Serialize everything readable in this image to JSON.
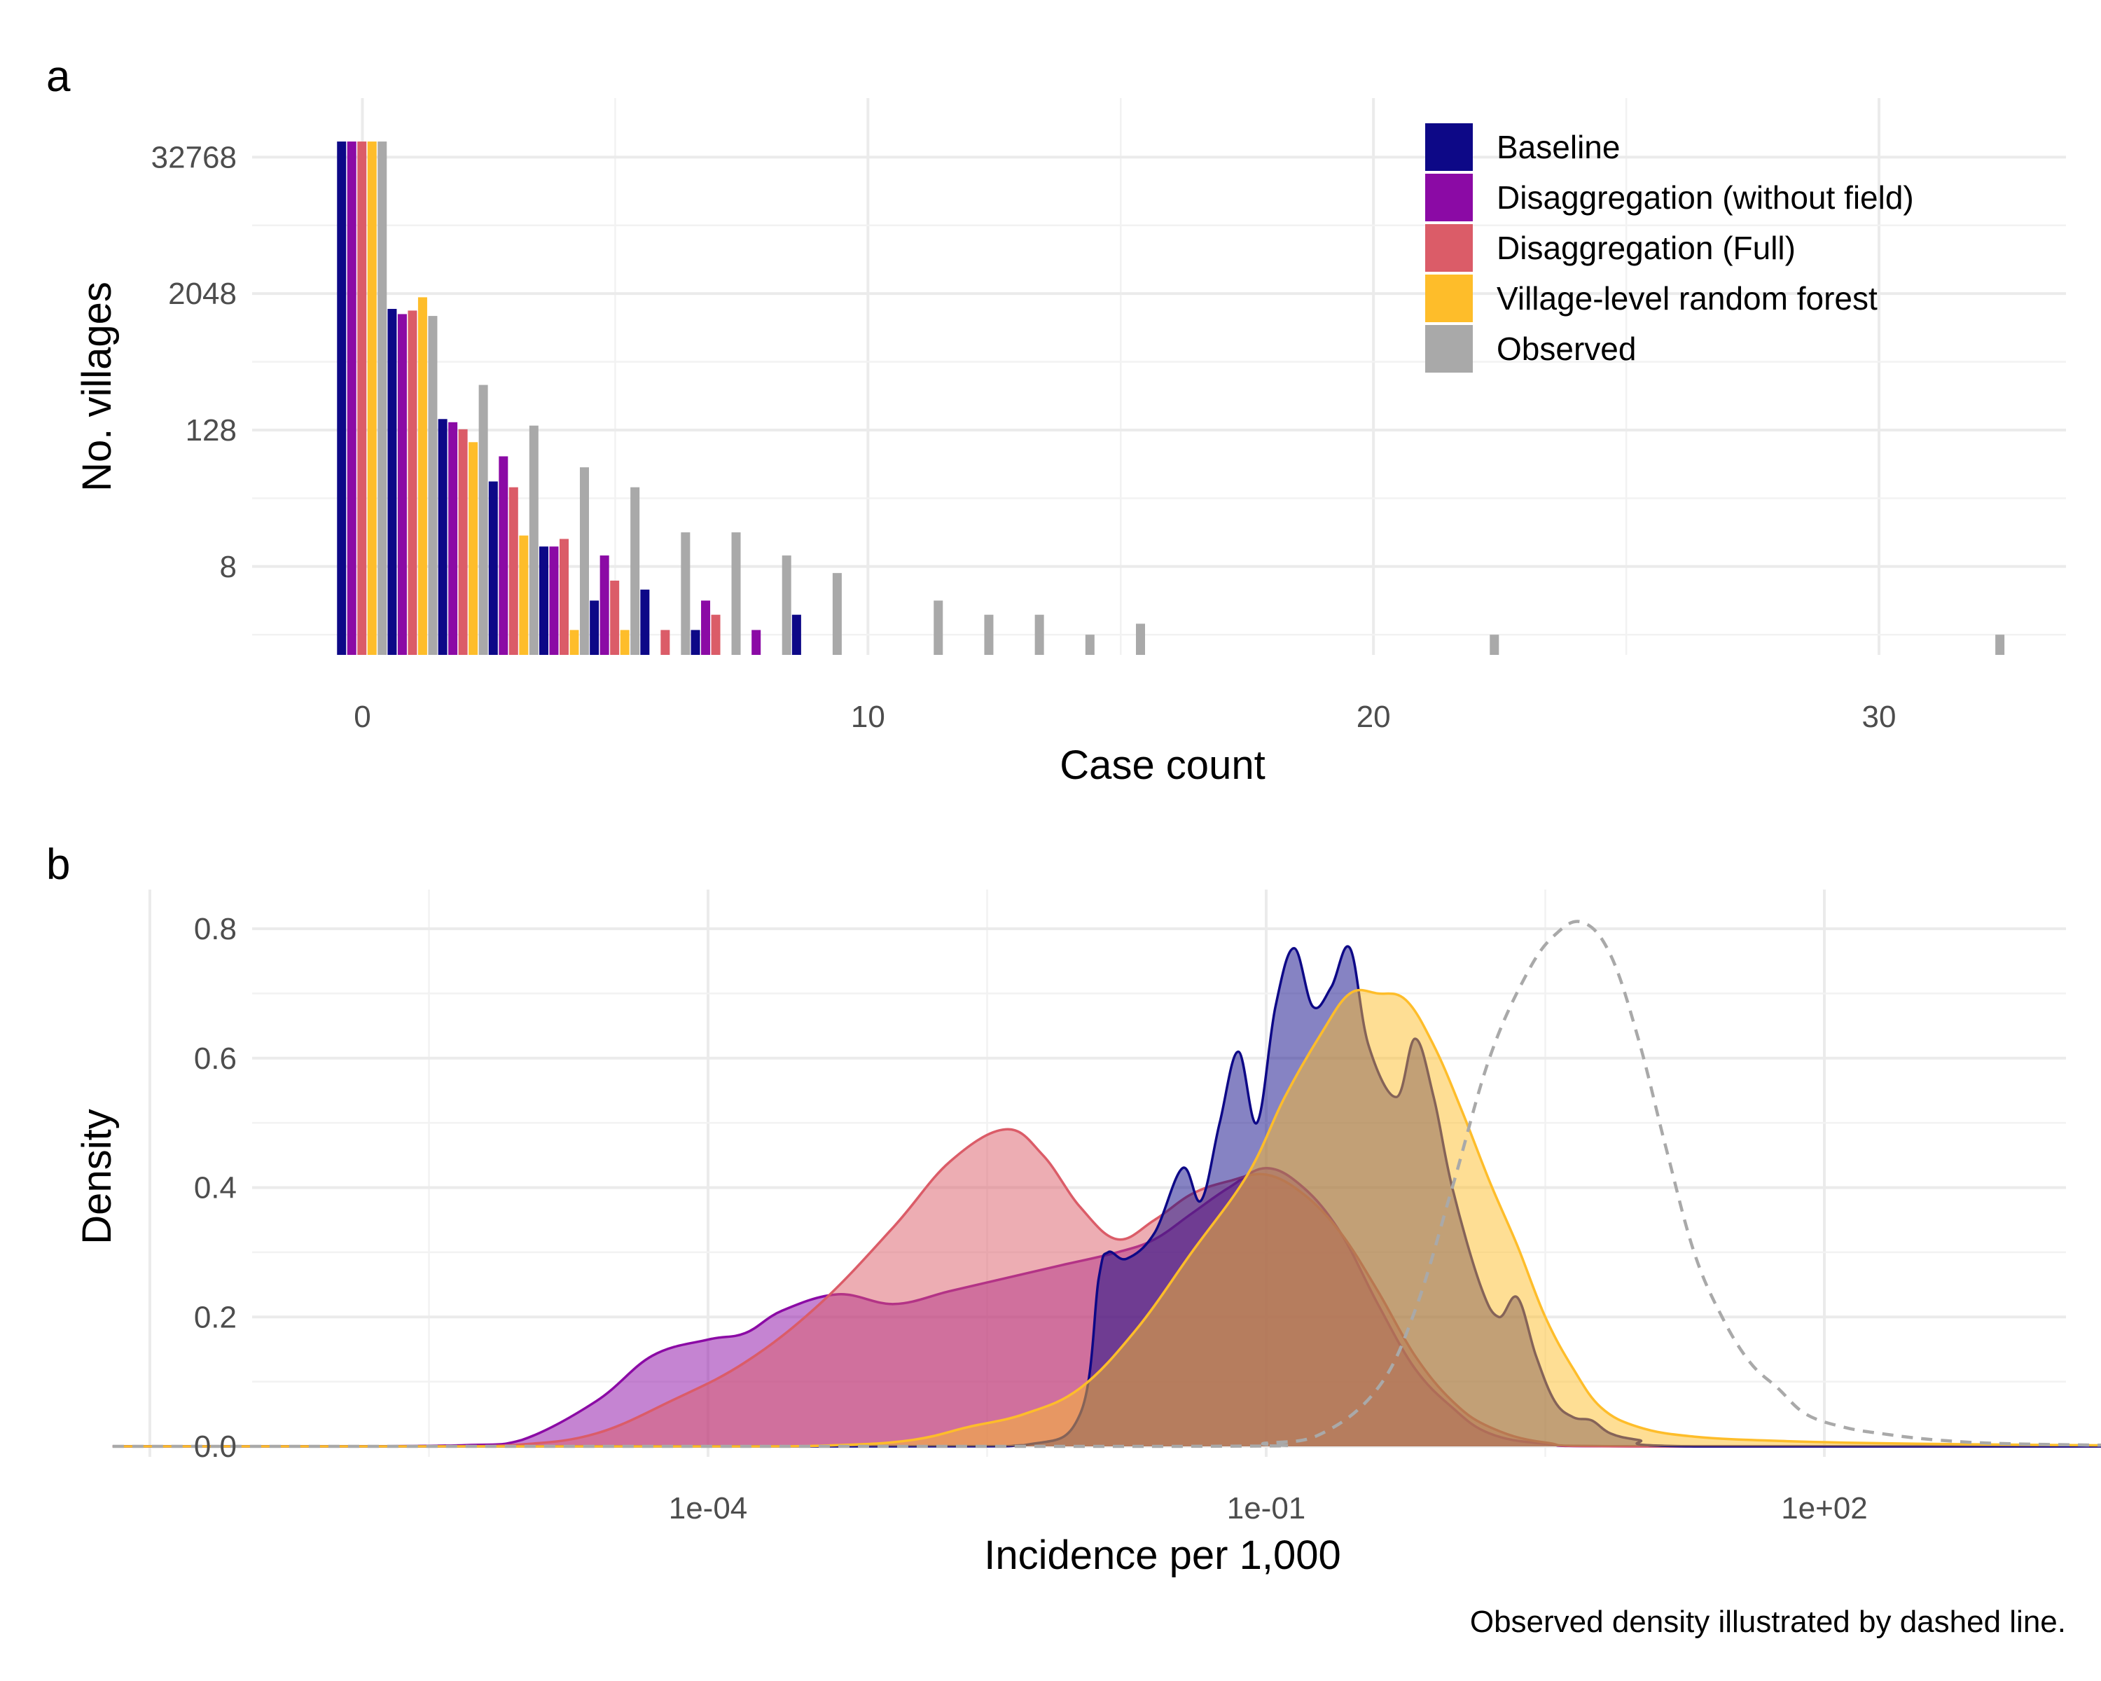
{
  "colors": {
    "baseline": "#0d0887",
    "disagg_without_field": "#8b0aa5",
    "disagg_full": "#db5c68",
    "village_rf": "#febd2a",
    "observed": "#a9a9a9"
  },
  "chart_data": [
    {
      "panel": "a",
      "type": "bar",
      "xlabel": "Case count",
      "ylabel": "No. villages",
      "y_scale": "log2",
      "xlim": [
        -0.5,
        32.5
      ],
      "xticks": [
        "0",
        "10",
        "20",
        "30"
      ],
      "yticks": [
        "8",
        "128",
        "2048",
        "32768"
      ],
      "legend_position": "top-right",
      "series": [
        {
          "name": "Baseline",
          "color_key": "baseline",
          "points": [
            [
              0,
              45000
            ],
            [
              1,
              1500
            ],
            [
              2,
              160
            ],
            [
              3,
              45
            ],
            [
              4,
              12
            ],
            [
              5,
              4
            ],
            [
              6,
              5
            ],
            [
              7,
              2.2
            ],
            [
              9,
              3
            ]
          ]
        },
        {
          "name": "Disaggregation (without field)",
          "color_key": "disagg_without_field",
          "points": [
            [
              0,
              45000
            ],
            [
              1,
              1350
            ],
            [
              2,
              150
            ],
            [
              3,
              75
            ],
            [
              4,
              12
            ],
            [
              5,
              10
            ],
            [
              6,
              0
            ],
            [
              7,
              4
            ],
            [
              8,
              2.2
            ]
          ]
        },
        {
          "name": "Disaggregation (Full)",
          "color_key": "disagg_full",
          "points": [
            [
              0,
              45000
            ],
            [
              1,
              1450
            ],
            [
              2,
              130
            ],
            [
              3,
              40
            ],
            [
              4,
              14
            ],
            [
              5,
              6
            ],
            [
              6,
              2.2
            ],
            [
              7,
              3
            ]
          ]
        },
        {
          "name": "Village-level random forest",
          "color_key": "village_rf",
          "points": [
            [
              0,
              45000
            ],
            [
              1,
              1900
            ],
            [
              2,
              100
            ],
            [
              3,
              15
            ],
            [
              4,
              2.2
            ],
            [
              5,
              2.2
            ]
          ]
        },
        {
          "name": "Observed",
          "color_key": "observed",
          "points": [
            [
              0,
              45000
            ],
            [
              1,
              1300
            ],
            [
              2,
              320
            ],
            [
              3,
              140
            ],
            [
              4,
              60
            ],
            [
              5,
              40
            ],
            [
              6,
              16
            ],
            [
              7,
              16
            ],
            [
              8,
              10
            ],
            [
              9,
              7
            ],
            [
              11,
              4
            ],
            [
              12,
              3
            ],
            [
              13,
              3
            ],
            [
              14,
              2
            ],
            [
              15,
              2.5
            ],
            [
              22,
              2
            ],
            [
              32,
              2
            ]
          ]
        }
      ]
    },
    {
      "panel": "b",
      "type": "area",
      "xlabel": "Incidence per 1,000",
      "ylabel": "Density",
      "x_scale": "log10",
      "xlim": [
        1e-08,
        10000
      ],
      "ylim": [
        0,
        0.85
      ],
      "xticks": [
        "1e-04",
        "1e-01",
        "1e+02"
      ],
      "yticks": [
        "0.0",
        "0.2",
        "0.4",
        "0.6",
        "0.8"
      ],
      "caption": "Observed density illustrated by dashed line.",
      "series": [
        {
          "name": "Disaggregation (without field)",
          "color_key": "disagg_without_field",
          "style": "filled",
          "points": [
            [
              -7.2,
              0
            ],
            [
              -6,
              0
            ],
            [
              -5.3,
              0.002
            ],
            [
              -5,
              0.01
            ],
            [
              -4.6,
              0.07
            ],
            [
              -4.3,
              0.14
            ],
            [
              -4,
              0.165
            ],
            [
              -3.8,
              0.175
            ],
            [
              -3.6,
              0.21
            ],
            [
              -3.3,
              0.235
            ],
            [
              -3.0,
              0.22
            ],
            [
              -2.7,
              0.24
            ],
            [
              -2.4,
              0.26
            ],
            [
              -2.1,
              0.28
            ],
            [
              -1.8,
              0.3
            ],
            [
              -1.6,
              0.32
            ],
            [
              -1.4,
              0.36
            ],
            [
              -1.2,
              0.4
            ],
            [
              -1.0,
              0.43
            ],
            [
              -0.8,
              0.4
            ],
            [
              -0.6,
              0.33
            ],
            [
              -0.4,
              0.22
            ],
            [
              -0.2,
              0.12
            ],
            [
              0,
              0.06
            ],
            [
              0.2,
              0.02
            ],
            [
              0.5,
              0.004
            ],
            [
              1,
              0
            ],
            [
              3.8,
              0
            ]
          ]
        },
        {
          "name": "Disaggregation (Full)",
          "color_key": "disagg_full",
          "style": "filled",
          "points": [
            [
              -7.2,
              0
            ],
            [
              -5.5,
              0
            ],
            [
              -5,
              0.003
            ],
            [
              -4.6,
              0.02
            ],
            [
              -4.2,
              0.07
            ],
            [
              -3.8,
              0.13
            ],
            [
              -3.4,
              0.22
            ],
            [
              -3.0,
              0.34
            ],
            [
              -2.7,
              0.44
            ],
            [
              -2.4,
              0.49
            ],
            [
              -2.2,
              0.45
            ],
            [
              -2.0,
              0.37
            ],
            [
              -1.8,
              0.32
            ],
            [
              -1.6,
              0.35
            ],
            [
              -1.4,
              0.39
            ],
            [
              -1.2,
              0.41
            ],
            [
              -1.0,
              0.42
            ],
            [
              -0.8,
              0.39
            ],
            [
              -0.6,
              0.33
            ],
            [
              -0.4,
              0.24
            ],
            [
              -0.2,
              0.14
            ],
            [
              0,
              0.07
            ],
            [
              0.2,
              0.03
            ],
            [
              0.5,
              0.006
            ],
            [
              1,
              0
            ],
            [
              3.8,
              0
            ]
          ]
        },
        {
          "name": "Baseline",
          "color_key": "baseline",
          "style": "filled",
          "points": [
            [
              -7.2,
              0
            ],
            [
              -3,
              0
            ],
            [
              -2.3,
              0.002
            ],
            [
              -2.0,
              0.05
            ],
            [
              -1.9,
              0.26
            ],
            [
              -1.85,
              0.3
            ],
            [
              -1.75,
              0.29
            ],
            [
              -1.6,
              0.33
            ],
            [
              -1.45,
              0.43
            ],
            [
              -1.35,
              0.38
            ],
            [
              -1.25,
              0.5
            ],
            [
              -1.15,
              0.61
            ],
            [
              -1.05,
              0.5
            ],
            [
              -0.95,
              0.68
            ],
            [
              -0.85,
              0.77
            ],
            [
              -0.75,
              0.68
            ],
            [
              -0.65,
              0.71
            ],
            [
              -0.55,
              0.77
            ],
            [
              -0.45,
              0.62
            ],
            [
              -0.3,
              0.54
            ],
            [
              -0.2,
              0.63
            ],
            [
              -0.1,
              0.54
            ],
            [
              0,
              0.4
            ],
            [
              0.15,
              0.25
            ],
            [
              0.25,
              0.2
            ],
            [
              0.35,
              0.23
            ],
            [
              0.45,
              0.14
            ],
            [
              0.55,
              0.07
            ],
            [
              0.65,
              0.045
            ],
            [
              0.75,
              0.04
            ],
            [
              0.85,
              0.02
            ],
            [
              1.0,
              0.01
            ],
            [
              1.3,
              0
            ],
            [
              3.8,
              0
            ]
          ]
        },
        {
          "name": "Village-level random forest",
          "color_key": "village_rf",
          "style": "filled",
          "points": [
            [
              -7.2,
              0
            ],
            [
              -4,
              0
            ],
            [
              -3.3,
              0.002
            ],
            [
              -2.9,
              0.01
            ],
            [
              -2.6,
              0.03
            ],
            [
              -2.3,
              0.05
            ],
            [
              -2.0,
              0.09
            ],
            [
              -1.7,
              0.18
            ],
            [
              -1.4,
              0.3
            ],
            [
              -1.1,
              0.42
            ],
            [
              -0.9,
              0.54
            ],
            [
              -0.7,
              0.64
            ],
            [
              -0.55,
              0.7
            ],
            [
              -0.4,
              0.7
            ],
            [
              -0.25,
              0.69
            ],
            [
              -0.1,
              0.62
            ],
            [
              0.05,
              0.52
            ],
            [
              0.2,
              0.41
            ],
            [
              0.35,
              0.31
            ],
            [
              0.5,
              0.2
            ],
            [
              0.65,
              0.12
            ],
            [
              0.8,
              0.06
            ],
            [
              1.0,
              0.03
            ],
            [
              1.3,
              0.015
            ],
            [
              1.8,
              0.008
            ],
            [
              2.5,
              0.004
            ],
            [
              3.8,
              0.001
            ]
          ]
        },
        {
          "name": "Observed",
          "color_key": "observed",
          "style": "dashed",
          "points": [
            [
              -7.2,
              0
            ],
            [
              -1.5,
              0
            ],
            [
              -1.0,
              0.005
            ],
            [
              -0.7,
              0.02
            ],
            [
              -0.4,
              0.09
            ],
            [
              -0.2,
              0.21
            ],
            [
              0,
              0.4
            ],
            [
              0.2,
              0.6
            ],
            [
              0.4,
              0.73
            ],
            [
              0.55,
              0.79
            ],
            [
              0.7,
              0.81
            ],
            [
              0.85,
              0.76
            ],
            [
              1.0,
              0.63
            ],
            [
              1.15,
              0.46
            ],
            [
              1.3,
              0.3
            ],
            [
              1.45,
              0.2
            ],
            [
              1.6,
              0.13
            ],
            [
              1.75,
              0.09
            ],
            [
              1.9,
              0.05
            ],
            [
              2.1,
              0.03
            ],
            [
              2.3,
              0.02
            ],
            [
              2.6,
              0.01
            ],
            [
              3.0,
              0.004
            ],
            [
              3.8,
              0.001
            ]
          ]
        }
      ]
    }
  ]
}
